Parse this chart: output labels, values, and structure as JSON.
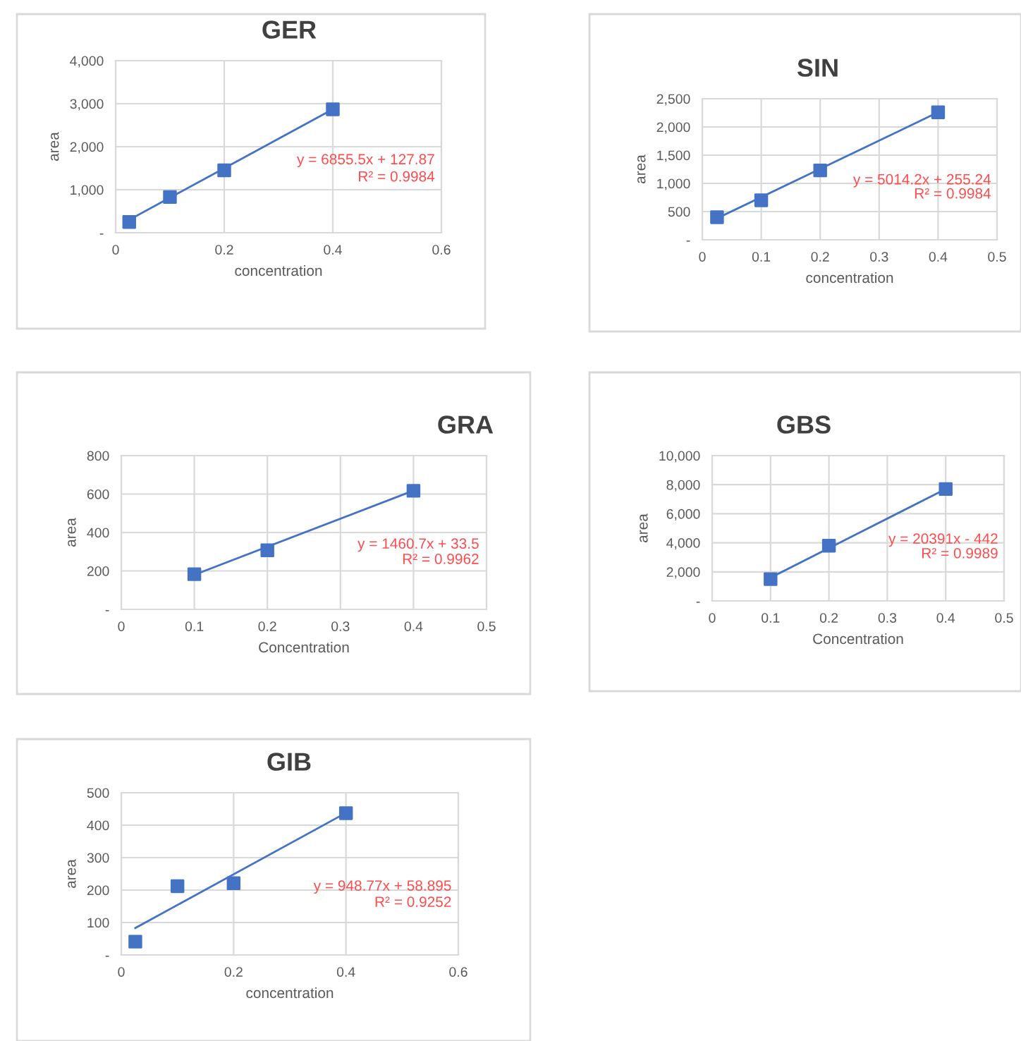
{
  "chart_data": [
    {
      "type": "scatter",
      "title": "GER",
      "xlabel": "concentration",
      "ylabel": "area",
      "marker": "square",
      "grid": true,
      "legend": false,
      "xlim": [
        0,
        0.6
      ],
      "xticks": [
        0,
        0.2,
        0.4,
        0.6
      ],
      "ylim": [
        0,
        4000
      ],
      "yticks": [
        {
          "value": 0,
          "label": "-"
        },
        {
          "value": 1000,
          "label": "1,000"
        },
        {
          "value": 2000,
          "label": "2,000"
        },
        {
          "value": 3000,
          "label": "3,000"
        },
        {
          "value": 4000,
          "label": "4,000"
        }
      ],
      "annotations": [
        "y = 6855.5x + 127.87",
        "R² = 0.9984"
      ],
      "series": [
        {
          "color": "#4472c4",
          "x": [
            0.025,
            0.1,
            0.2,
            0.4
          ],
          "values": [
            250,
            830,
            1450,
            2870
          ]
        },
        {
          "type": "line",
          "color": "#4472c4",
          "marker": "none",
          "line_style": "solid",
          "x": [
            0.025,
            0.4
          ],
          "values": [
            300,
            2870
          ]
        }
      ]
    },
    {
      "type": "scatter",
      "title": "SIN",
      "xlabel": "concentration",
      "ylabel": "area",
      "marker": "square",
      "grid": true,
      "legend": false,
      "xlim": [
        0,
        0.5
      ],
      "xticks": [
        0,
        0.1,
        0.2,
        0.3,
        0.4,
        0.5
      ],
      "ylim": [
        0,
        2500
      ],
      "yticks": [
        {
          "value": 0,
          "label": "-"
        },
        500,
        {
          "value": 1000,
          "label": "1,000"
        },
        {
          "value": 1500,
          "label": "1,500"
        },
        {
          "value": 2000,
          "label": "2,000"
        },
        {
          "value": 2500,
          "label": "2,500"
        }
      ],
      "annotations": [
        "y = 5014.2x + 255.24",
        "R² = 0.9984"
      ],
      "series": [
        {
          "color": "#4472c4",
          "x": [
            0.025,
            0.1,
            0.2,
            0.4
          ],
          "values": [
            400,
            700,
            1230,
            2260
          ]
        },
        {
          "type": "line",
          "color": "#4472c4",
          "marker": "none",
          "line_style": "solid",
          "x": [
            0.025,
            0.4
          ],
          "values": [
            380,
            2260
          ]
        }
      ]
    },
    {
      "type": "scatter",
      "title": "GRA",
      "xlabel": "Concentration",
      "ylabel": "area",
      "marker": "square",
      "grid": true,
      "legend": false,
      "xlim": [
        0,
        0.5
      ],
      "xticks": [
        0,
        0.1,
        0.2,
        0.3,
        0.4,
        0.5
      ],
      "ylim": [
        0,
        800
      ],
      "yticks": [
        {
          "value": 0,
          "label": "-"
        },
        200,
        400,
        600,
        800
      ],
      "annotations": [
        "y = 1460.7x + 33.5",
        "R² = 0.9962"
      ],
      "series": [
        {
          "color": "#4472c4",
          "x": [
            0.1,
            0.2,
            0.4
          ],
          "values": [
            183,
            307,
            617
          ]
        },
        {
          "type": "line",
          "color": "#4472c4",
          "marker": "none",
          "line_style": "solid",
          "x": [
            0.1,
            0.4
          ],
          "values": [
            180,
            618
          ]
        }
      ]
    },
    {
      "type": "scatter",
      "title": "GBS",
      "xlabel": "Concentration",
      "ylabel": "area",
      "marker": "square",
      "grid": true,
      "legend": false,
      "xlim": [
        0,
        0.5
      ],
      "xticks": [
        0,
        0.1,
        0.2,
        0.3,
        0.4,
        0.5
      ],
      "ylim": [
        0,
        10000
      ],
      "yticks": [
        {
          "value": 0,
          "label": "-"
        },
        {
          "value": 2000,
          "label": "2,000"
        },
        {
          "value": 4000,
          "label": "4,000"
        },
        {
          "value": 6000,
          "label": "6,000"
        },
        {
          "value": 8000,
          "label": "8,000"
        },
        {
          "value": 10000,
          "label": "10,000"
        }
      ],
      "annotations": [
        "y = 20391x - 442",
        "R² = 0.9989"
      ],
      "series": [
        {
          "color": "#4472c4",
          "x": [
            0.1,
            0.2,
            0.4
          ],
          "values": [
            1500,
            3800,
            7700
          ]
        },
        {
          "type": "line",
          "color": "#4472c4",
          "marker": "none",
          "line_style": "solid",
          "x": [
            0.1,
            0.4
          ],
          "values": [
            1600,
            7700
          ]
        }
      ]
    },
    {
      "type": "scatter",
      "title": "GIB",
      "xlabel": "concentration",
      "ylabel": "area",
      "marker": "square",
      "grid": true,
      "legend": false,
      "xlim": [
        0,
        0.6
      ],
      "xticks": [
        0,
        0.2,
        0.4,
        0.6
      ],
      "ylim": [
        0,
        500
      ],
      "yticks": [
        {
          "value": 0,
          "label": "-"
        },
        100,
        200,
        300,
        400,
        500
      ],
      "annotations": [
        "y = 948.77x + 58.895",
        "R² = 0.9252"
      ],
      "series": [
        {
          "color": "#4472c4",
          "x": [
            0.025,
            0.1,
            0.2,
            0.4
          ],
          "values": [
            41,
            212,
            221,
            437
          ]
        },
        {
          "type": "line",
          "color": "#4472c4",
          "marker": "none",
          "line_style": "solid",
          "x": [
            0.025,
            0.4
          ],
          "values": [
            83,
            438
          ]
        }
      ]
    }
  ]
}
